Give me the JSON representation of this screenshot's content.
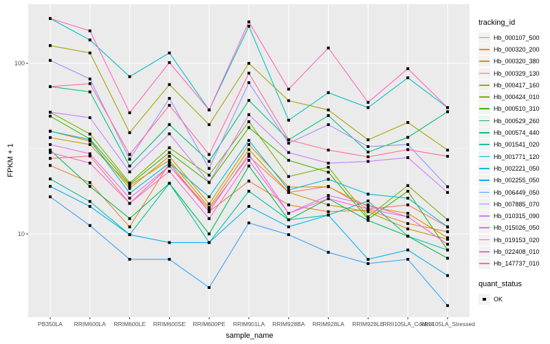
{
  "figure": {
    "background": "#FFFFFF",
    "panel_background": "#EBEBEB",
    "grid_color": "#FFFFFF",
    "tick_label_color": "#4D4D4D",
    "axis_title_color": "#000000"
  },
  "axes": {
    "x_title": "sample_name",
    "y_title": "FPKM + 1",
    "y_scale": "log10",
    "y_major_ticks": [
      {
        "label": "100",
        "value": 100
      },
      {
        "label": "10",
        "value": 10
      }
    ],
    "y_minor_breaks": [
      31.62
    ]
  },
  "legend": {
    "tracking_title": "tracking_id",
    "quant_title": "quant_status",
    "quant_items": [
      {
        "label": "OK",
        "marker": "black-square"
      }
    ]
  },
  "chart_data": {
    "type": "line",
    "title": "",
    "xlabel": "sample_name",
    "ylabel": "FPKM + 1",
    "grid": true,
    "legend_position": "right",
    "point_marker": "filled-black-square",
    "y_axis": {
      "scale": "log10",
      "ticks": [
        10,
        100
      ],
      "minor_breaks": [
        31.62
      ],
      "range": [
        3.2,
        220
      ]
    },
    "categories": [
      "PB350LA",
      "RRIM600LA",
      "RRIM600LE",
      "RRIM600SE",
      "RRIM600PE",
      "RRIM901LA",
      "RRIM928BA",
      "RRIM928LA",
      "RRIM928LE",
      "RRII105LA_Control",
      "RRII105LA_Stressed"
    ],
    "series": [
      {
        "name": "Hb_000107_500",
        "color": "#F8766D",
        "values": [
          27.7,
          28.6,
          15.1,
          25.0,
          14.0,
          28.5,
          17.5,
          19.0,
          14.0,
          14.8,
          11.0
        ]
      },
      {
        "name": "Hb_000320_200",
        "color": "#EA8331",
        "values": [
          25.2,
          20.0,
          11.0,
          26.0,
          13.5,
          20.4,
          14.8,
          13.5,
          13.8,
          11.5,
          10.3
        ]
      },
      {
        "name": "Hb_000320_380",
        "color": "#D89000",
        "values": [
          40.0,
          35.0,
          18.5,
          28.5,
          15.0,
          33.4,
          18.8,
          18.9,
          14.5,
          13.2,
          9.5
        ]
      },
      {
        "name": "Hb_000329_130",
        "color": "#C09B00",
        "values": [
          36.7,
          33.4,
          19.2,
          27.0,
          14.3,
          31.2,
          17.5,
          14.8,
          13.5,
          10.7,
          9.3
        ]
      },
      {
        "name": "Hb_000417_160",
        "color": "#A3A500",
        "values": [
          127.0,
          115.0,
          39.2,
          75.0,
          43.7,
          100.0,
          60.4,
          53.3,
          35.6,
          45.0,
          31.0
        ]
      },
      {
        "name": "Hb_000424_010",
        "color": "#7CAE00",
        "values": [
          51.7,
          38.5,
          19.9,
          32.0,
          22.1,
          45.5,
          21.7,
          24.6,
          12.6,
          19.2,
          12.1
        ]
      },
      {
        "name": "Hb_000510_310",
        "color": "#39B600",
        "values": [
          49.0,
          36.0,
          19.5,
          30.0,
          20.0,
          42.0,
          27.0,
          23.0,
          12.2,
          17.8,
          8.05
        ]
      },
      {
        "name": "Hb_000529_260",
        "color": "#00BB4E",
        "values": [
          31.0,
          19.0,
          12.3,
          19.8,
          10.0,
          25.0,
          12.1,
          16.1,
          12.0,
          9.7,
          7.2
        ]
      },
      {
        "name": "Hb_000574_440",
        "color": "#00BF7D",
        "values": [
          73.0,
          68.0,
          25.0,
          43.7,
          26.6,
          60.6,
          35.6,
          49.4,
          30.2,
          36.8,
          52.0
        ]
      },
      {
        "name": "Hb_001541_020",
        "color": "#00C1A3",
        "values": [
          21.0,
          15.5,
          9.9,
          19.8,
          8.9,
          17.8,
          12.1,
          12.9,
          15.6,
          9.7,
          8.05
        ]
      },
      {
        "name": "Hb_001771_120",
        "color": "#00BFC4",
        "values": [
          183.0,
          137.0,
          83.5,
          115.0,
          53.3,
          165.0,
          46.4,
          67.3,
          55.0,
          82.2,
          55.0
        ]
      },
      {
        "name": "Hb_002221_050",
        "color": "#00BAE0",
        "values": [
          40.0,
          35.7,
          17.3,
          26.0,
          16.5,
          35.3,
          18.1,
          20.9,
          17.1,
          16.2,
          11.0
        ]
      },
      {
        "name": "Hb_002255_050",
        "color": "#00B0F6",
        "values": [
          19.0,
          14.5,
          9.9,
          8.9,
          8.9,
          14.5,
          11.0,
          12.9,
          7.1,
          8.05,
          5.7
        ]
      },
      {
        "name": "Hb_006449_050",
        "color": "#35A2FF",
        "values": [
          16.5,
          11.2,
          7.1,
          7.1,
          4.85,
          11.6,
          9.9,
          7.8,
          6.7,
          7.1,
          3.8
        ]
      },
      {
        "name": "Hb_007885_070",
        "color": "#9590FF",
        "values": [
          104.0,
          81.0,
          27.4,
          62.3,
          24.2,
          77.0,
          34.0,
          43.7,
          32.5,
          33.4,
          18.9
        ]
      },
      {
        "name": "Hb_010315_090",
        "color": "#C77CFF",
        "values": [
          51.7,
          48.0,
          23.1,
          38.6,
          20.1,
          50.0,
          30.0,
          26.0,
          26.6,
          28.0,
          17.5
        ]
      },
      {
        "name": "Hb_015026_050",
        "color": "#E76BF3",
        "values": [
          33.4,
          29.5,
          16.2,
          25.0,
          13.5,
          29.4,
          13.2,
          16.8,
          14.8,
          12.6,
          8.7
        ]
      },
      {
        "name": "Hb_019153_020",
        "color": "#FA62DB",
        "values": [
          30.0,
          26.0,
          15.1,
          23.3,
          12.3,
          27.0,
          13.2,
          16.1,
          14.0,
          12.6,
          8.7
        ]
      },
      {
        "name": "Hb_022408_010",
        "color": "#FF62BC",
        "values": [
          183.0,
          155.0,
          51.3,
          101.0,
          53.3,
          175.0,
          70.5,
          123.0,
          59.0,
          93.0,
          55.0
        ]
      },
      {
        "name": "Hb_147737_010",
        "color": "#FF6A98",
        "values": [
          73.0,
          76.0,
          29.2,
          56.7,
          29.2,
          87.5,
          35.6,
          31.0,
          28.3,
          31.2,
          28.5
        ]
      }
    ]
  }
}
